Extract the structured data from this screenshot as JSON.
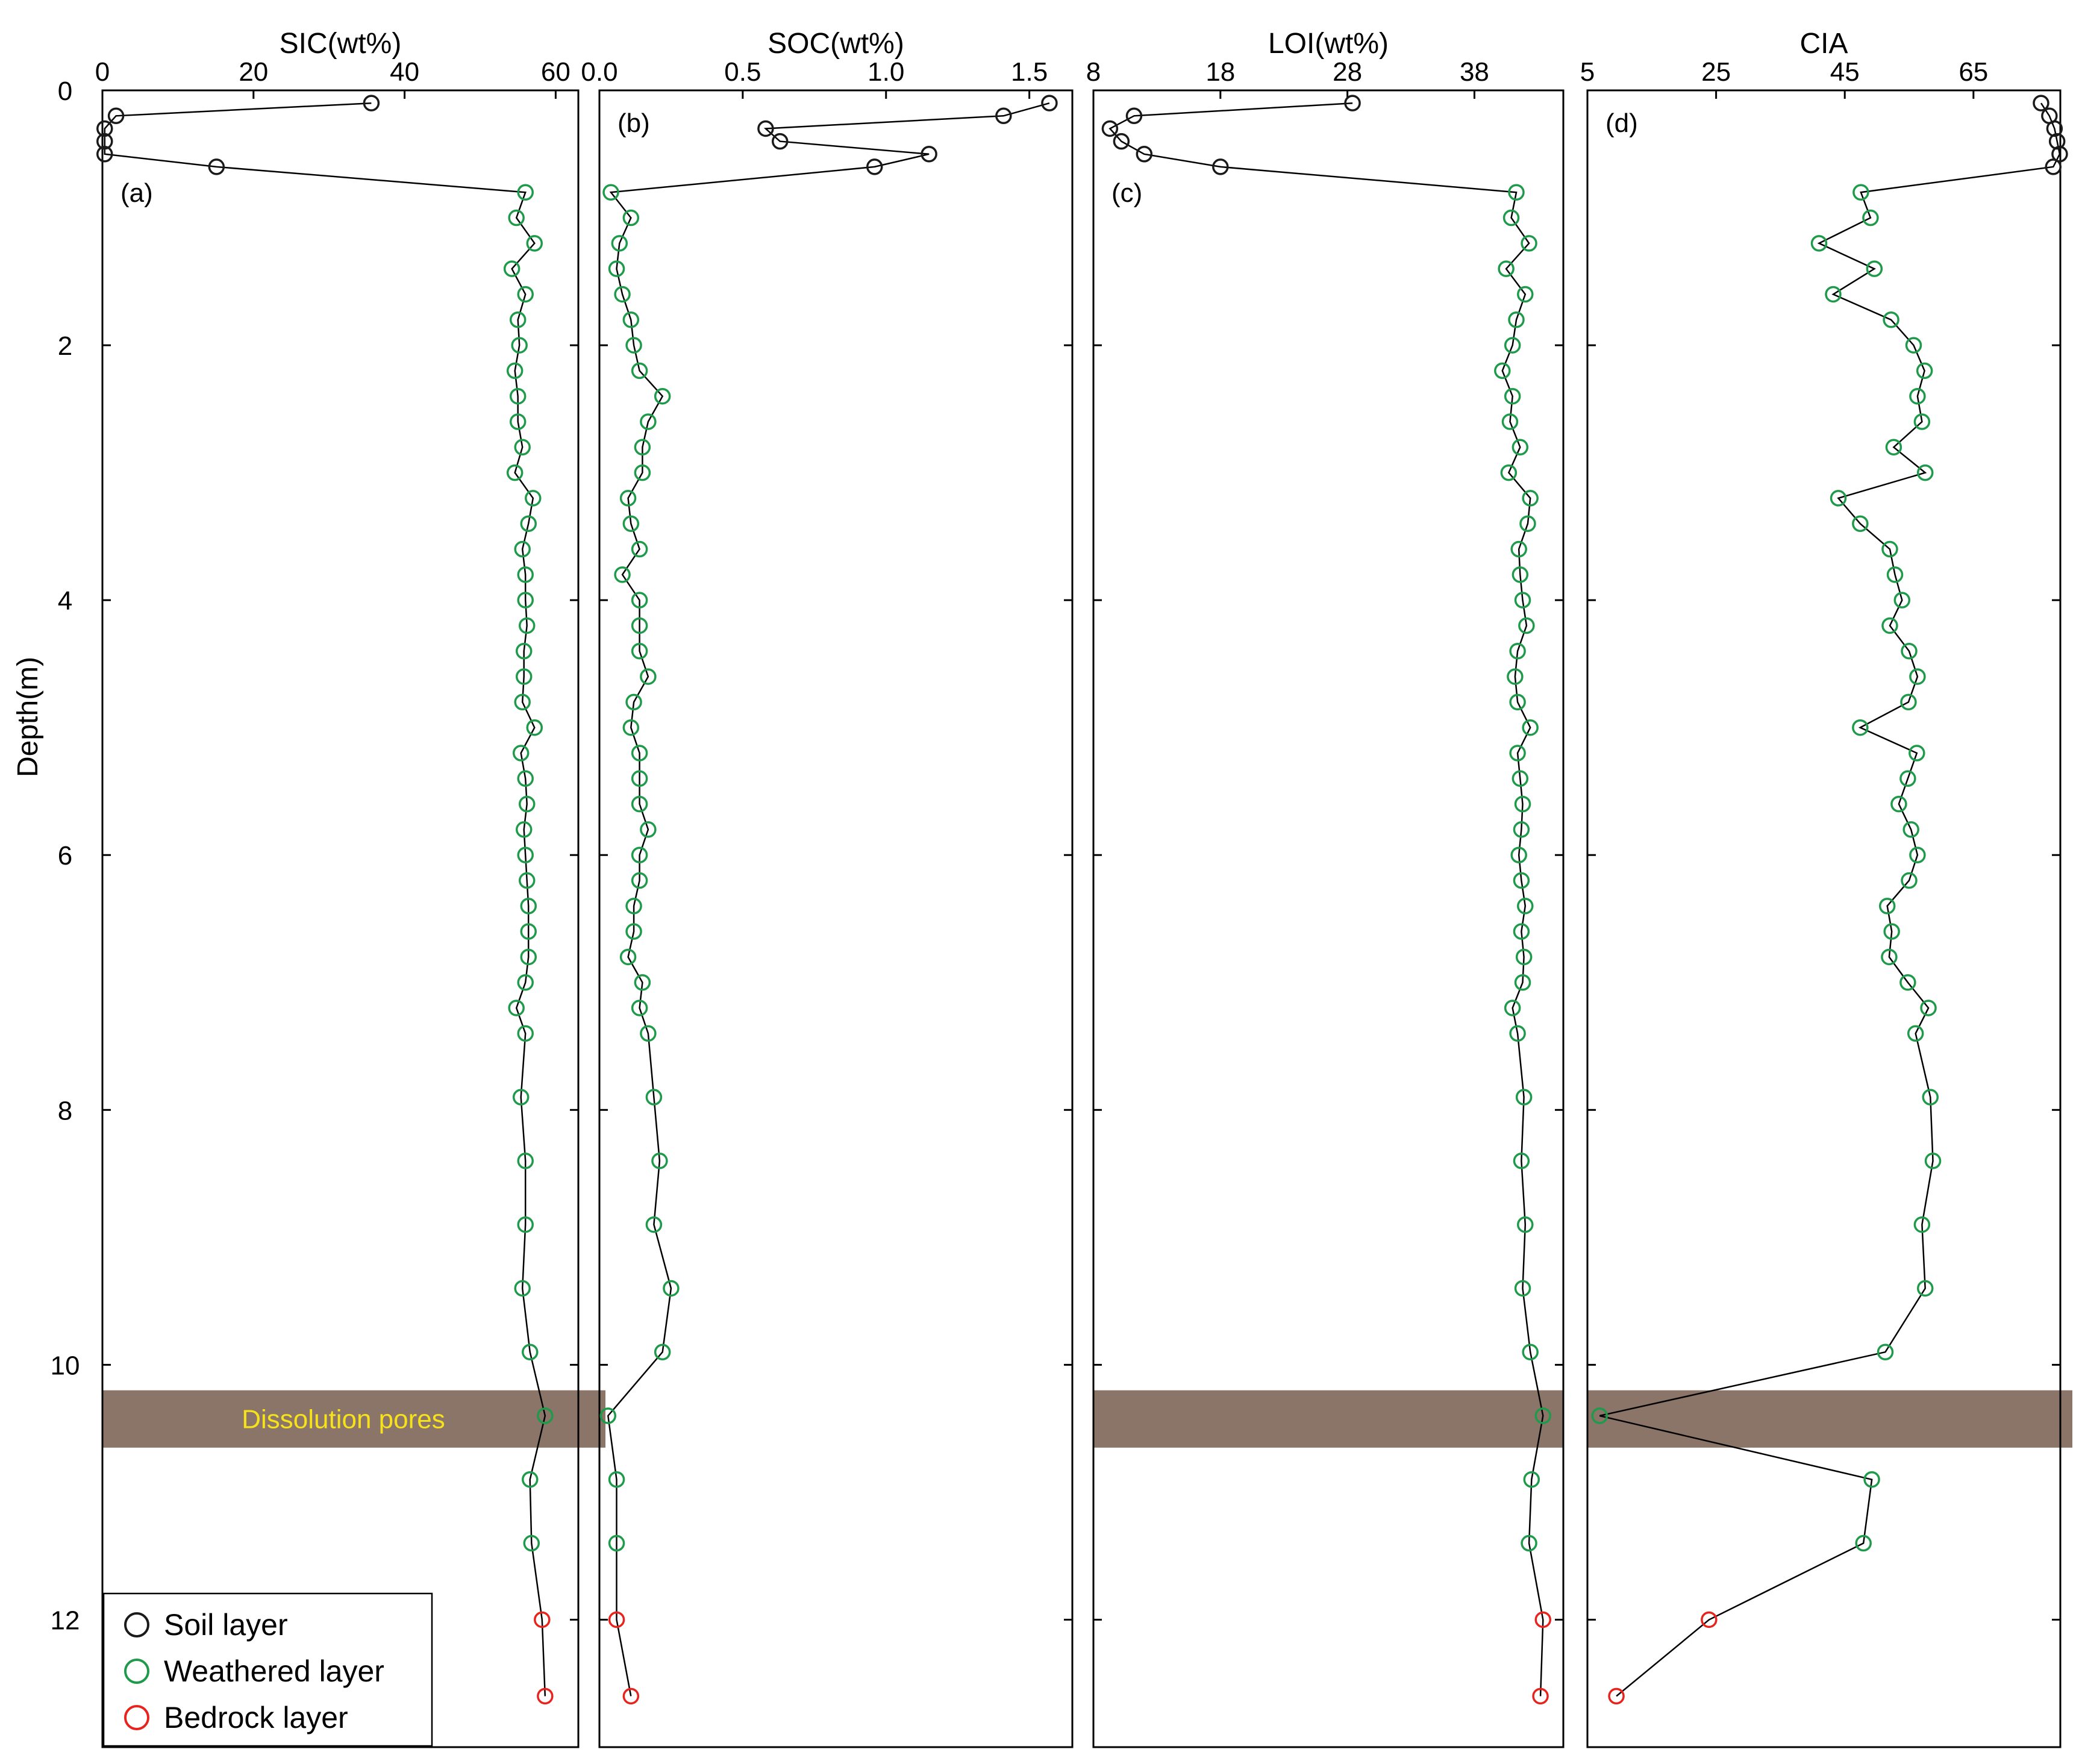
{
  "chart_data": {
    "type": "scatter",
    "y_axis": {
      "label": "Depth(m)",
      "ticks": [
        0,
        2,
        4,
        6,
        8,
        10,
        12
      ],
      "ylim": [
        0,
        13.0
      ],
      "inverted": true
    },
    "depths": [
      0.1,
      0.2,
      0.3,
      0.4,
      0.5,
      0.6,
      0.8,
      1.0,
      1.2,
      1.4,
      1.6,
      1.8,
      2.0,
      2.2,
      2.4,
      2.6,
      2.8,
      3.0,
      3.2,
      3.4,
      3.6,
      3.8,
      4.0,
      4.2,
      4.4,
      4.6,
      4.8,
      5.0,
      5.2,
      5.4,
      5.6,
      5.8,
      6.0,
      6.2,
      6.4,
      6.6,
      6.8,
      7.0,
      7.2,
      7.4,
      7.9,
      8.4,
      8.9,
      9.4,
      9.9,
      10.4,
      10.9,
      11.4,
      12.0,
      12.6
    ],
    "layers": [
      "soil",
      "soil",
      "soil",
      "soil",
      "soil",
      "soil",
      "weathered",
      "weathered",
      "weathered",
      "weathered",
      "weathered",
      "weathered",
      "weathered",
      "weathered",
      "weathered",
      "weathered",
      "weathered",
      "weathered",
      "weathered",
      "weathered",
      "weathered",
      "weathered",
      "weathered",
      "weathered",
      "weathered",
      "weathered",
      "weathered",
      "weathered",
      "weathered",
      "weathered",
      "weathered",
      "weathered",
      "weathered",
      "weathered",
      "weathered",
      "weathered",
      "weathered",
      "weathered",
      "weathered",
      "weathered",
      "weathered",
      "weathered",
      "weathered",
      "weathered",
      "weathered",
      "weathered",
      "weathered",
      "weathered",
      "bedrock",
      "bedrock"
    ],
    "layer_colors": {
      "soil": "#1a1a1a",
      "weathered": "#1e9a4a",
      "bedrock": "#e8231e"
    },
    "panels": [
      {
        "id": "a",
        "panel_label": "(a)",
        "xlabel": "SIC(wt%)",
        "xlim": [
          0,
          63
        ],
        "ticks": [
          0,
          20,
          40,
          60
        ],
        "tick_labels": [
          "0",
          "20",
          "40",
          "60"
        ],
        "values": [
          35.6,
          1.8,
          0.3,
          0.3,
          0.3,
          15.1,
          56.0,
          54.8,
          57.2,
          54.2,
          56.0,
          55.0,
          55.2,
          54.6,
          55.0,
          55.0,
          55.6,
          54.6,
          57.0,
          56.4,
          55.6,
          56.0,
          56.0,
          56.2,
          55.8,
          55.8,
          55.6,
          57.2,
          55.4,
          56.0,
          56.2,
          55.8,
          56.0,
          56.2,
          56.4,
          56.4,
          56.4,
          56.0,
          54.8,
          56.0,
          55.4,
          56.0,
          56.0,
          55.6,
          56.6,
          58.6,
          56.6,
          56.8,
          58.2,
          58.6
        ]
      },
      {
        "id": "b",
        "panel_label": "(b)",
        "xlabel": "SOC(wt%)",
        "xlim": [
          0.0,
          1.65
        ],
        "ticks": [
          0.0,
          0.5,
          1.0,
          1.5
        ],
        "tick_labels": [
          "0.0",
          "0.5",
          "1.0",
          "1.5"
        ],
        "values": [
          1.57,
          1.41,
          0.58,
          0.63,
          1.15,
          0.96,
          0.04,
          0.11,
          0.07,
          0.06,
          0.08,
          0.11,
          0.12,
          0.14,
          0.22,
          0.17,
          0.15,
          0.15,
          0.1,
          0.11,
          0.14,
          0.08,
          0.14,
          0.14,
          0.14,
          0.17,
          0.12,
          0.11,
          0.14,
          0.14,
          0.14,
          0.17,
          0.14,
          0.14,
          0.12,
          0.12,
          0.1,
          0.15,
          0.14,
          0.17,
          0.19,
          0.21,
          0.19,
          0.25,
          0.22,
          0.03,
          0.06,
          0.06,
          0.06,
          0.11
        ]
      },
      {
        "id": "c",
        "panel_label": "(c)",
        "xlabel": "LOI(wt%)",
        "xlim": [
          8,
          45
        ],
        "ticks": [
          8,
          18,
          28,
          38
        ],
        "tick_labels": [
          "8",
          "18",
          "28",
          "38"
        ],
        "values": [
          28.4,
          11.2,
          9.3,
          10.2,
          12.0,
          18.0,
          41.3,
          40.9,
          42.3,
          40.5,
          42.0,
          41.3,
          41.0,
          40.2,
          41.0,
          40.8,
          41.6,
          40.7,
          42.4,
          42.2,
          41.5,
          41.6,
          41.8,
          42.1,
          41.4,
          41.2,
          41.4,
          42.4,
          41.4,
          41.6,
          41.8,
          41.7,
          41.5,
          41.7,
          42.0,
          41.7,
          41.9,
          41.8,
          41.0,
          41.4,
          41.9,
          41.7,
          42.0,
          41.8,
          42.4,
          43.4,
          42.5,
          42.3,
          43.4,
          43.2
        ]
      },
      {
        "id": "d",
        "panel_label": "(d)",
        "xlabel": "CIA",
        "xlim": [
          5,
          78.5
        ],
        "ticks": [
          5,
          25,
          45,
          65
        ],
        "tick_labels": [
          "5",
          "25",
          "45",
          "65"
        ],
        "values": [
          75.5,
          76.8,
          77.6,
          78.0,
          78.4,
          77.4,
          47.5,
          49.0,
          41.0,
          49.6,
          43.2,
          52.2,
          55.7,
          57.4,
          56.3,
          57.0,
          52.6,
          57.5,
          44.0,
          47.4,
          52.0,
          52.8,
          53.9,
          52.0,
          55.0,
          56.3,
          54.9,
          47.4,
          56.2,
          54.8,
          53.4,
          55.3,
          56.3,
          55.0,
          51.6,
          52.3,
          51.9,
          54.8,
          58.0,
          56.0,
          58.3,
          58.7,
          57.0,
          57.5,
          51.3,
          6.9,
          49.2,
          47.9,
          23.9,
          9.5
        ]
      }
    ],
    "band": {
      "label": "Dissolution pores",
      "depth_range": [
        10.2,
        10.65
      ],
      "color": "#8b7468"
    },
    "legend": {
      "position": "bottom-left",
      "entries": [
        {
          "key": "soil",
          "label": "Soil layer"
        },
        {
          "key": "weathered",
          "label": "Weathered layer"
        },
        {
          "key": "bedrock",
          "label": "Bedrock layer"
        }
      ]
    }
  }
}
